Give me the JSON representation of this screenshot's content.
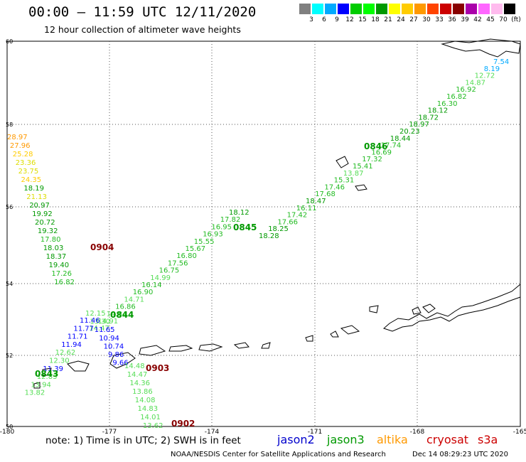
{
  "header": {
    "title": "00:00 – 11:59 UTC 12/11/2020",
    "subtitle": "12 hour collection of altimeter wave heights"
  },
  "scale": {
    "labels": [
      "3",
      "6",
      "9",
      "12",
      "15",
      "18",
      "21",
      "24",
      "27",
      "30",
      "33",
      "36",
      "39",
      "42",
      "45",
      "70",
      "(ft)"
    ],
    "colors": [
      "#808080",
      "#00ffff",
      "#00aaff",
      "#0000ff",
      "#00cc00",
      "#00ff00",
      "#009900",
      "#ffff00",
      "#ffcc00",
      "#ff9900",
      "#ff4400",
      "#cc0000",
      "#880000",
      "#aa00aa",
      "#ff66ff",
      "#ffbbee",
      "#000000"
    ]
  },
  "axes": {
    "lat_labels": [
      "60",
      "58",
      "56",
      "54",
      "52",
      "50"
    ],
    "lon_labels": [
      "-180",
      "-177",
      "-174",
      "-171",
      "-168",
      "-165"
    ]
  },
  "passes": [
    {
      "time": "0846",
      "color": "#009900",
      "values": [
        "7.54",
        "8.19",
        "12.72",
        "14.87",
        "16.92",
        "16.82",
        "16.30",
        "18.12",
        "18.72",
        "18.97",
        "20.23",
        "18.44",
        "17.74",
        "16.69",
        "17.32",
        "15.41",
        "13.87",
        "15.31",
        "17.46",
        "17.68",
        "18.47",
        "16.11",
        "17.42",
        "17.66",
        "18.25",
        "18.28"
      ]
    },
    {
      "time": "0845",
      "color": "#009900",
      "values": [
        "18.12",
        "17.82",
        "16.95",
        "16.93",
        "15.55",
        "15.67",
        "16.80",
        "17.56",
        "16.75",
        "14.99",
        "16.14",
        "16.90",
        "14.71",
        "16.86",
        "14.84",
        "14.91",
        "14.47"
      ]
    },
    {
      "time": "0844",
      "color": "#009900",
      "values": [
        "12.15",
        "13.30",
        "11.65",
        "10.94",
        "10.74",
        "9.86",
        "9.66"
      ]
    },
    {
      "time": "0843",
      "color": "#009900",
      "values": [
        "11.46",
        "11.77",
        "11.71",
        "11.94",
        "12.62",
        "12.30",
        "11.39",
        "12.83",
        "13.94",
        "13.82"
      ]
    },
    {
      "time": "0904",
      "color": "#880000",
      "values": [
        "28.97",
        "27.96",
        "25.28",
        "23.36",
        "23.75",
        "24.35",
        "18.19",
        "21.13",
        "20.97",
        "19.92",
        "20.72",
        "19.32",
        "17.80",
        "18.03",
        "18.37",
        "19.40",
        "17.26",
        "16.82"
      ]
    },
    {
      "time": "0903",
      "color": "#880000",
      "values": [
        "14.48",
        "14.47",
        "14.36",
        "13.86",
        "14.08",
        "14.83",
        "14.01",
        "13.62"
      ]
    },
    {
      "time": "0902",
      "color": "#880000",
      "values": []
    }
  ],
  "footer": {
    "note": "note: 1) Time is in UTC; 2) SWH is in feet",
    "satellites": [
      {
        "name": "jason2",
        "color": "#0000cc"
      },
      {
        "name": "jason3",
        "color": "#009900"
      },
      {
        "name": "altika",
        "color": "#ff9900"
      },
      {
        "name": "cryosat",
        "color": "#cc0000"
      },
      {
        "name": "s3a",
        "color": "#cc0000"
      }
    ],
    "credit": "NOAA/NESDIS Center for Satellite Applications and Research",
    "timestamp": "Dec 14 08:29:23 UTC 2020"
  }
}
